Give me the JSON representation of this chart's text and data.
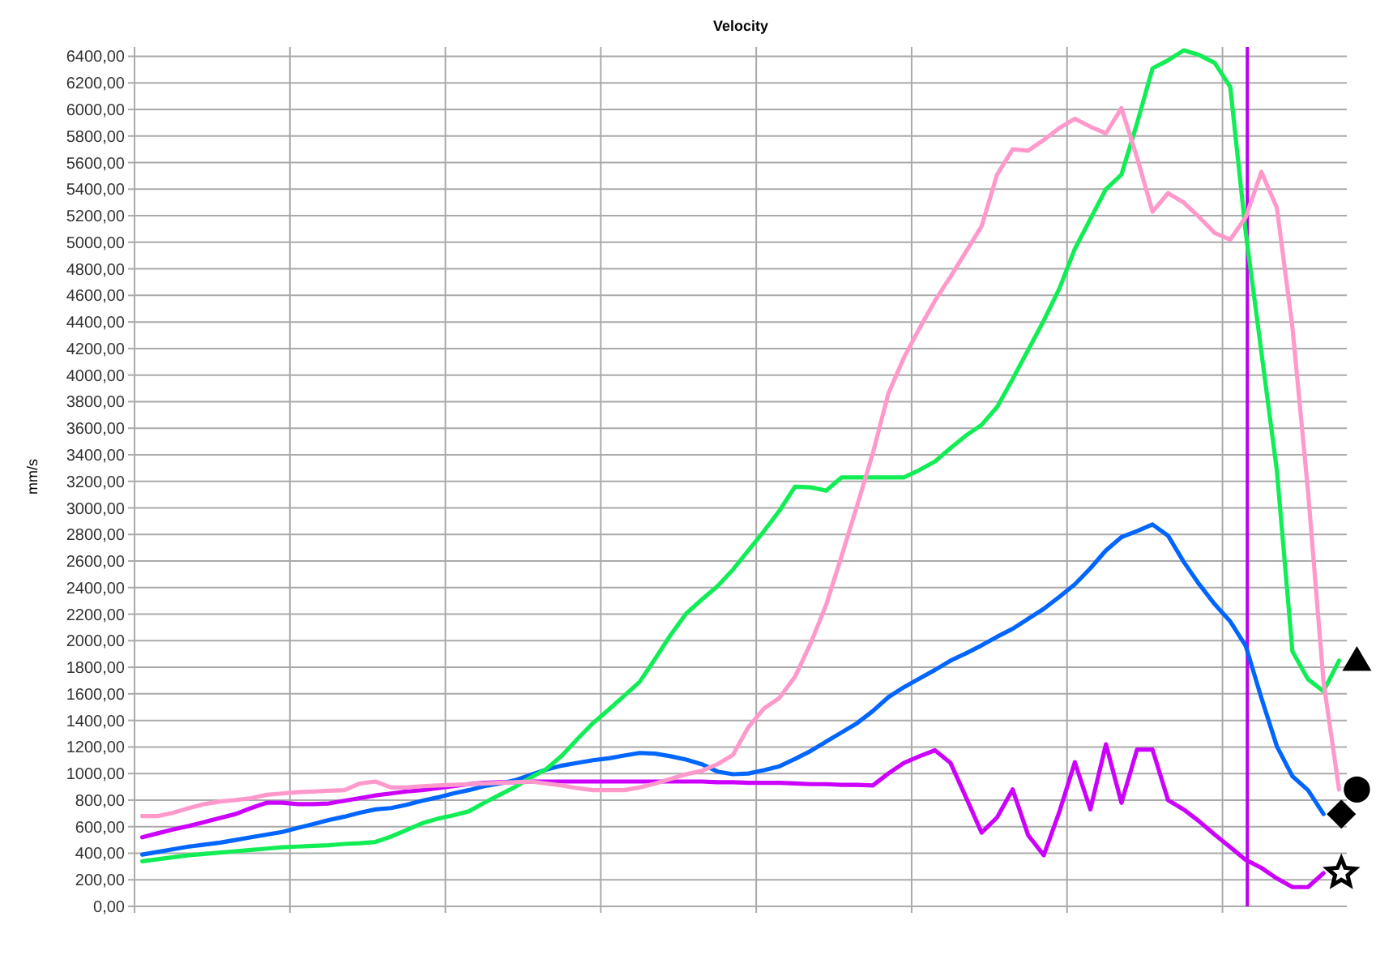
{
  "chart_data": {
    "type": "line",
    "title": "Velocity",
    "ylabel": "mm/s",
    "ylim": [
      0,
      6470
    ],
    "categories": [
      null,
      null,
      null,
      null,
      null,
      null,
      null,
      null,
      null,
      null,
      null,
      null,
      null,
      null,
      null,
      null,
      null,
      null,
      null,
      null,
      null,
      null,
      null,
      null,
      null,
      null,
      null,
      null,
      null,
      null,
      null,
      null,
      null,
      null,
      null,
      null,
      null,
      null,
      null,
      null,
      null,
      null,
      null,
      null,
      null,
      null,
      null,
      null,
      null,
      null,
      null,
      null,
      null,
      null,
      null,
      null,
      null,
      null,
      null,
      null,
      null,
      null,
      null,
      null,
      null,
      null,
      null,
      null,
      null,
      null,
      null,
      null,
      null,
      null,
      null,
      null,
      null,
      null
    ],
    "yticks": [
      {
        "value": 0,
        "label": "0,00"
      },
      {
        "value": 200,
        "label": "200,00"
      },
      {
        "value": 400,
        "label": "400,00"
      },
      {
        "value": 600,
        "label": "600,00"
      },
      {
        "value": 800,
        "label": "800,00"
      },
      {
        "value": 1000,
        "label": "1000,00"
      },
      {
        "value": 1200,
        "label": "1200,00"
      },
      {
        "value": 1400,
        "label": "1400,00"
      },
      {
        "value": 1600,
        "label": "1600,00"
      },
      {
        "value": 1800,
        "label": "1800,00"
      },
      {
        "value": 2000,
        "label": "2000,00"
      },
      {
        "value": 2200,
        "label": "2200,00"
      },
      {
        "value": 2400,
        "label": "2400,00"
      },
      {
        "value": 2600,
        "label": "2600,00"
      },
      {
        "value": 2800,
        "label": "2800,00"
      },
      {
        "value": 3000,
        "label": "3000,00"
      },
      {
        "value": 3200,
        "label": "3200,00"
      },
      {
        "value": 3400,
        "label": "3400,00"
      },
      {
        "value": 3600,
        "label": "3600,00"
      },
      {
        "value": 3800,
        "label": "3800,00"
      },
      {
        "value": 4000,
        "label": "4000,00"
      },
      {
        "value": 4200,
        "label": "4200,00"
      },
      {
        "value": 4400,
        "label": "4400,00"
      },
      {
        "value": 4600,
        "label": "4600,00"
      },
      {
        "value": 4800,
        "label": "4800,00"
      },
      {
        "value": 5000,
        "label": "5000,00"
      },
      {
        "value": 5200,
        "label": "5200,00"
      },
      {
        "value": 5400,
        "label": "5400,00"
      },
      {
        "value": 5600,
        "label": "5600,00"
      },
      {
        "value": 5800,
        "label": "5800,00"
      },
      {
        "value": 6000,
        "label": "6000,00"
      },
      {
        "value": 6200,
        "label": "6200,00"
      },
      {
        "value": 6400,
        "label": "6400,00"
      }
    ],
    "grid": true,
    "line_style": "solid",
    "series": [
      {
        "color": "#ff99cc",
        "values": [
          680,
          680,
          705,
          740,
          770,
          790,
          800,
          815,
          840,
          850,
          860,
          865,
          870,
          875,
          925,
          940,
          895,
          895,
          905,
          910,
          915,
          920,
          925,
          930,
          935,
          940,
          925,
          910,
          890,
          875,
          875,
          875,
          895,
          925,
          960,
          995,
          1020,
          1070,
          1140,
          1350,
          1490,
          1570,
          1730,
          1980,
          2270,
          2640,
          3020,
          3410,
          3860,
          4130,
          4350,
          4560,
          4740,
          4930,
          5120,
          5510,
          5700,
          5690,
          5770,
          5860,
          5930,
          5870,
          5820,
          6010,
          5640,
          5230,
          5370,
          5300,
          5190,
          5070,
          5020,
          5190,
          5530,
          5260,
          4360,
          3130,
          1690,
          880
        ]
      },
      {
        "color": "#11ee55",
        "values": [
          340,
          355,
          370,
          385,
          395,
          405,
          415,
          425,
          435,
          445,
          450,
          455,
          460,
          470,
          475,
          485,
          525,
          575,
          625,
          660,
          685,
          715,
          780,
          840,
          900,
          970,
          1035,
          1135,
          1260,
          1380,
          1480,
          1585,
          1690,
          1865,
          2045,
          2205,
          2310,
          2410,
          2535,
          2680,
          2825,
          2980,
          3160,
          3155,
          3130,
          3230,
          3230,
          3230,
          3230,
          3230,
          3285,
          3350,
          3450,
          3545,
          3625,
          3760,
          3970,
          4190,
          4410,
          4650,
          4950,
          5175,
          5400,
          5510,
          5895,
          6310,
          6370,
          6445,
          6410,
          6350,
          6170,
          5070,
          4175,
          3280,
          1920,
          1710,
          1620,
          1850
        ]
      },
      {
        "color": "#0066ff",
        "values": [
          390,
          410,
          430,
          450,
          465,
          480,
          500,
          520,
          540,
          560,
          590,
          620,
          650,
          675,
          705,
          730,
          740,
          765,
          795,
          820,
          850,
          875,
          905,
          925,
          950,
          990,
          1030,
          1060,
          1080,
          1100,
          1115,
          1135,
          1155,
          1150,
          1130,
          1105,
          1070,
          1015,
          995,
          1000,
          1025,
          1055,
          1110,
          1170,
          1240,
          1310,
          1380,
          1470,
          1575,
          1650,
          1715,
          1780,
          1850,
          1905,
          1965,
          2030,
          2090,
          2165,
          2240,
          2330,
          2425,
          2545,
          2680,
          2780,
          2825,
          2875,
          2790,
          2595,
          2425,
          2275,
          2145,
          1960,
          1570,
          1205,
          980,
          875,
          695,
          null
        ]
      },
      {
        "color": "#cc00ff",
        "values": [
          520,
          550,
          580,
          605,
          635,
          665,
          695,
          740,
          780,
          780,
          770,
          770,
          775,
          795,
          815,
          835,
          850,
          865,
          875,
          890,
          905,
          920,
          930,
          935,
          935,
          940,
          940,
          940,
          940,
          940,
          940,
          940,
          940,
          940,
          940,
          940,
          940,
          935,
          935,
          930,
          930,
          930,
          925,
          920,
          920,
          915,
          915,
          910,
          1000,
          1080,
          1130,
          1175,
          1080,
          820,
          555,
          670,
          880,
          535,
          385,
          710,
          1085,
          730,
          1220,
          780,
          1180,
          1180,
          800,
          730,
          640,
          540,
          445,
          350,
          290,
          210,
          145,
          145,
          250,
          null
        ]
      }
    ]
  }
}
